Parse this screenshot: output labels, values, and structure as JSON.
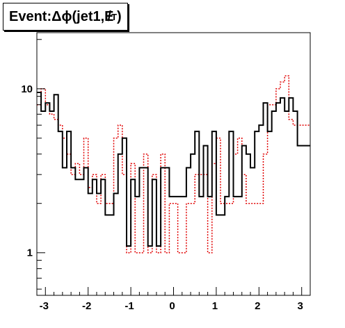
{
  "title": {
    "prefix": "Event: ",
    "main": "Δϕ(jet1,E",
    "slash": "/",
    "subscript": "T",
    "suffix": ")"
  },
  "chart_data": {
    "type": "histogram-step",
    "title": "Event: Δϕ(jet1,E/T)",
    "xlabel": "",
    "ylabel": "",
    "log_y": true,
    "xlim": [
      -3.2,
      3.2
    ],
    "ylim": [
      0.55,
      22
    ],
    "x_ticks": [
      -3,
      -2,
      -1,
      0,
      1,
      2,
      3
    ],
    "x_tick_labels": [
      "-3",
      "-2",
      "-1",
      "0",
      "1",
      "2",
      "3"
    ],
    "y_ticks": [
      1,
      10
    ],
    "y_tick_labels": [
      "1",
      "10"
    ],
    "bin_edges": [
      -3.2,
      -3.1,
      -3.0,
      -2.9,
      -2.8,
      -2.7,
      -2.6,
      -2.5,
      -2.4,
      -2.3,
      -2.2,
      -2.1,
      -2.0,
      -1.9,
      -1.8,
      -1.7,
      -1.6,
      -1.5,
      -1.4,
      -1.3,
      -1.2,
      -1.1,
      -1.0,
      -0.9,
      -0.8,
      -0.7,
      -0.6,
      -0.5,
      -0.4,
      -0.3,
      -0.2,
      -0.1,
      0.0,
      0.1,
      0.2,
      0.3,
      0.4,
      0.5,
      0.6,
      0.7,
      0.8,
      0.9,
      1.0,
      1.1,
      1.2,
      1.3,
      1.4,
      1.5,
      1.6,
      1.7,
      1.8,
      1.9,
      2.0,
      2.1,
      2.2,
      2.3,
      2.4,
      2.5,
      2.6,
      2.7,
      2.8,
      2.9,
      3.0,
      3.1,
      3.2
    ],
    "series": [
      {
        "color": "#000000",
        "style": "solid",
        "values": [
          9.5,
          7.3,
          8.2,
          7.3,
          9.2,
          5.5,
          3.3,
          5.5,
          3.3,
          2.8,
          2.8,
          3.3,
          2.3,
          2.8,
          2.3,
          2.8,
          1.7,
          1.7,
          2.3,
          4.0,
          5.0,
          1.1,
          2.8,
          2.2,
          3.3,
          3.3,
          1.1,
          2.8,
          1.1,
          3.3,
          3.3,
          2.2,
          2.2,
          2.2,
          2.2,
          3.3,
          4.0,
          5.5,
          2.2,
          4.5,
          2.2,
          5.5,
          1.7,
          1.7,
          2.2,
          5.5,
          2.2,
          2.2,
          4.5,
          4.0,
          3.3,
          5.5,
          6.0,
          8.2,
          5.5,
          7.3,
          8.2,
          8.8,
          7.3,
          8.8,
          7.3,
          4.5,
          4.5,
          4.5
        ]
      },
      {
        "color": "#e00000",
        "style": "dotted",
        "values": [
          8.0,
          10.0,
          8.0,
          7.0,
          6.5,
          6.0,
          5.0,
          4.0,
          3.0,
          3.5,
          3.0,
          5.0,
          2.5,
          3.0,
          2.0,
          3.0,
          2.0,
          2.0,
          5.0,
          6.0,
          3.0,
          1.0,
          3.5,
          1.0,
          1.0,
          4.0,
          1.0,
          3.0,
          1.0,
          4.0,
          1.0,
          2.0,
          2.0,
          1.0,
          1.0,
          2.0,
          2.0,
          3.0,
          3.0,
          3.0,
          1.0,
          3.5,
          5.0,
          2.0,
          2.0,
          2.0,
          4.0,
          5.0,
          3.0,
          2.0,
          2.0,
          2.0,
          2.0,
          4.0,
          8.0,
          8.0,
          10.0,
          11.0,
          12.0,
          6.5,
          6.0,
          6.0,
          6.0,
          6.0
        ]
      }
    ]
  }
}
